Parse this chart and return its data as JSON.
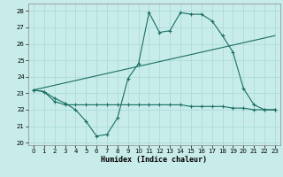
{
  "xlabel": "Humidex (Indice chaleur)",
  "bg_color": "#c8ecea",
  "grid_color": "#a8d8d4",
  "line_color": "#1a6e64",
  "xlim_min": -0.5,
  "xlim_max": 23.5,
  "ylim_min": 19.85,
  "ylim_max": 28.45,
  "xticks": [
    0,
    1,
    2,
    3,
    4,
    5,
    6,
    7,
    8,
    9,
    10,
    11,
    12,
    13,
    14,
    15,
    16,
    17,
    18,
    19,
    20,
    21,
    22,
    23
  ],
  "yticks": [
    20,
    21,
    22,
    23,
    24,
    25,
    26,
    27,
    28
  ],
  "line1_x": [
    0,
    1,
    2,
    3,
    4,
    5,
    6,
    7,
    8,
    9,
    10,
    11,
    12,
    13,
    14,
    15,
    16,
    17,
    18,
    19,
    20,
    21,
    22,
    23
  ],
  "line1_y": [
    23.2,
    23.1,
    22.7,
    22.4,
    22.0,
    21.3,
    20.4,
    20.5,
    21.5,
    23.9,
    24.8,
    27.9,
    26.7,
    26.8,
    27.9,
    27.8,
    27.8,
    27.4,
    26.5,
    25.5,
    23.3,
    22.3,
    22.0,
    22.0
  ],
  "line2_x": [
    0,
    23
  ],
  "line2_y": [
    23.2,
    26.5
  ],
  "line3_x": [
    0,
    1,
    2,
    3,
    4,
    5,
    6,
    7,
    8,
    9,
    10,
    11,
    12,
    13,
    14,
    15,
    16,
    17,
    18,
    19,
    20,
    21,
    22,
    23
  ],
  "line3_y": [
    23.2,
    23.1,
    22.5,
    22.3,
    22.3,
    22.3,
    22.3,
    22.3,
    22.3,
    22.3,
    22.3,
    22.3,
    22.3,
    22.3,
    22.3,
    22.2,
    22.2,
    22.2,
    22.2,
    22.1,
    22.1,
    22.0,
    22.0,
    22.0
  ],
  "xlabel_fontsize": 6,
  "tick_fontsize": 5,
  "figwidth": 3.2,
  "figheight": 2.0,
  "dpi": 100
}
